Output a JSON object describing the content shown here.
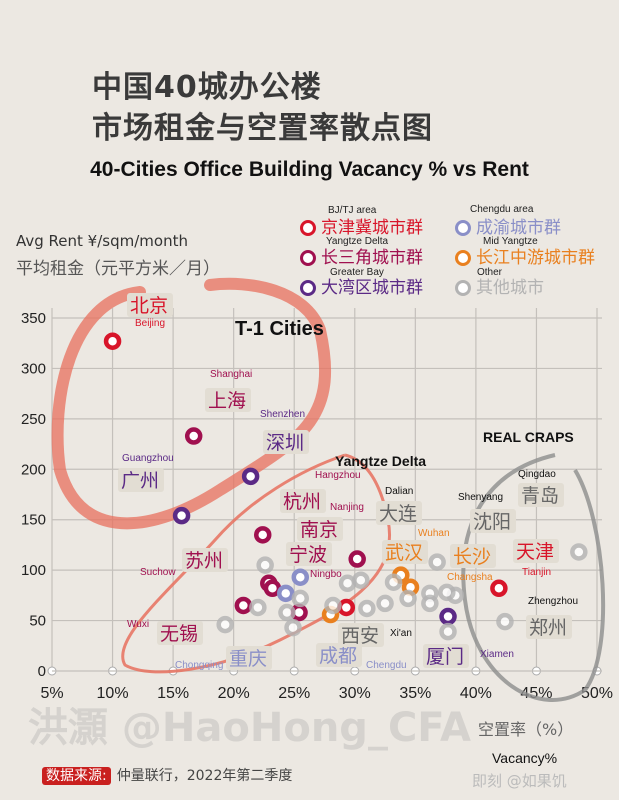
{
  "title_cn": [
    "中国40城办公楼",
    "市场租金与空置率散点图"
  ],
  "source_label": "数据来源:",
  "source_text": "仲量联行，2022年第二季度",
  "watermark": "洪灝 @HaoHong_CFA",
  "footer_brand": "即刻 @如果饥",
  "legend": [
    {
      "cn": "京津冀城市群",
      "en": "BJ/TJ area",
      "color": "#d8152a"
    },
    {
      "cn": "长三角城市群",
      "en": "Yangtze Delta",
      "color": "#a0104f"
    },
    {
      "cn": "大湾区城市群",
      "en": "Greater Bay",
      "color": "#5b2a86"
    },
    {
      "cn": "成渝城市群",
      "en": "Chengdu area",
      "color": "#8a8fc8"
    },
    {
      "cn": "长江中游城市群",
      "en": "Mid Yangtze",
      "color": "#e9801f"
    },
    {
      "cn": "其他城市",
      "en": "Other",
      "color": "#b3b3b3"
    }
  ],
  "chart_data": {
    "type": "scatter",
    "title": "40-Cities Office Building Vacancy % vs Rent",
    "xlabel": "空置率（%）",
    "xlabel_en": "Vacancy%",
    "ylabel": "Avg Rent ¥/sqm/month",
    "ylabel_cn": "平均租金（元平方米／月）",
    "xlim": [
      5,
      50
    ],
    "ylim": [
      0,
      350
    ],
    "xticks": [
      "5%",
      "10%",
      "15%",
      "20%",
      "25%",
      "30%",
      "35%",
      "40%",
      "45%",
      "50%"
    ],
    "yticks": [
      "0",
      "50",
      "100",
      "150",
      "200",
      "250",
      "300",
      "350"
    ],
    "grid": true,
    "annotations": [
      "T-1 Cities",
      "Yangtze Delta",
      "REAL CRAPS"
    ],
    "points": [
      {
        "cn": "北京",
        "en": "Beijing",
        "group": 0,
        "x": 10.0,
        "y": 327
      },
      {
        "cn": "上海",
        "en": "Shanghai",
        "group": 1,
        "x": 16.7,
        "y": 233
      },
      {
        "cn": "深圳",
        "en": "Shenzhen",
        "group": 2,
        "x": 21.4,
        "y": 193
      },
      {
        "cn": "广州",
        "en": "Guangzhou",
        "group": 2,
        "x": 15.7,
        "y": 154
      },
      {
        "cn": "杭州",
        "en": "Hangzhou",
        "group": 1,
        "x": 22.4,
        "y": 135
      },
      {
        "cn": "南京",
        "en": "Nanjing",
        "group": 1,
        "x": 30.2,
        "y": 111
      },
      {
        "cn": "苏州",
        "en": "Suchow",
        "group": 1,
        "x": 22.9,
        "y": 87
      },
      {
        "cn": "宁波",
        "en": "Ningbo",
        "group": 1,
        "x": 23.2,
        "y": 82
      },
      {
        "cn": "无锡",
        "en": "Wuxi",
        "group": 1,
        "x": 20.8,
        "y": 65
      },
      {
        "cn": "",
        "en": "",
        "group": 1,
        "x": 25.4,
        "y": 58
      },
      {
        "cn": "重庆",
        "en": "Chongqing",
        "group": 3,
        "x": 24.3,
        "y": 77
      },
      {
        "cn": "成都",
        "en": "Chengdu",
        "group": 3,
        "x": 25.5,
        "y": 93
      },
      {
        "cn": "",
        "en": "",
        "group": 0,
        "x": 29.3,
        "y": 63
      },
      {
        "cn": "天津",
        "en": "Tianjin",
        "group": 0,
        "x": 41.9,
        "y": 82
      },
      {
        "cn": "",
        "en": "",
        "group": 4,
        "x": 28.0,
        "y": 56
      },
      {
        "cn": "武汉",
        "en": "Wuhan",
        "group": 4,
        "x": 33.8,
        "y": 95
      },
      {
        "cn": "长沙",
        "en": "Changsha",
        "group": 4,
        "x": 34.6,
        "y": 83
      },
      {
        "cn": "厦门",
        "en": "Xiamen",
        "group": 2,
        "x": 37.7,
        "y": 54
      },
      {
        "cn": "大连",
        "en": "Dalian",
        "group": 5,
        "x": 36.8,
        "y": 108
      },
      {
        "cn": "青岛",
        "en": "Qingdao",
        "group": 5,
        "x": 48.5,
        "y": 118
      },
      {
        "cn": "郑州",
        "en": "Zhengzhou",
        "group": 5,
        "x": 42.4,
        "y": 49
      },
      {
        "cn": "沈阳",
        "en": "Shenyang",
        "group": 5,
        "x": 38.3,
        "y": 75
      },
      {
        "cn": "西安",
        "en": "Xi'an",
        "group": 5,
        "x": 32.5,
        "y": 67
      },
      {
        "cn": "",
        "en": "",
        "group": 5,
        "x": 22.6,
        "y": 105
      },
      {
        "cn": "",
        "en": "",
        "group": 5,
        "x": 22.0,
        "y": 63
      },
      {
        "cn": "",
        "en": "",
        "group": 5,
        "x": 19.3,
        "y": 46
      },
      {
        "cn": "",
        "en": "",
        "group": 5,
        "x": 24.9,
        "y": 43
      },
      {
        "cn": "",
        "en": "",
        "group": 5,
        "x": 24.4,
        "y": 58
      },
      {
        "cn": "",
        "en": "",
        "group": 5,
        "x": 25.5,
        "y": 72
      },
      {
        "cn": "",
        "en": "",
        "group": 5,
        "x": 28.2,
        "y": 65
      },
      {
        "cn": "",
        "en": "",
        "group": 5,
        "x": 29.4,
        "y": 87
      },
      {
        "cn": "",
        "en": "",
        "group": 5,
        "x": 30.5,
        "y": 90
      },
      {
        "cn": "",
        "en": "",
        "group": 5,
        "x": 33.2,
        "y": 88
      },
      {
        "cn": "",
        "en": "",
        "group": 5,
        "x": 34.4,
        "y": 72
      },
      {
        "cn": "",
        "en": "",
        "group": 5,
        "x": 36.2,
        "y": 77
      },
      {
        "cn": "",
        "en": "",
        "group": 5,
        "x": 36.2,
        "y": 67
      },
      {
        "cn": "",
        "en": "",
        "group": 5,
        "x": 37.6,
        "y": 78
      },
      {
        "cn": "",
        "en": "",
        "group": 5,
        "x": 37.7,
        "y": 39
      },
      {
        "cn": "",
        "en": "",
        "group": 5,
        "x": 13.5,
        "y": 0
      },
      {
        "cn": "",
        "en": "",
        "group": 5,
        "x": 31.0,
        "y": 62
      }
    ]
  }
}
